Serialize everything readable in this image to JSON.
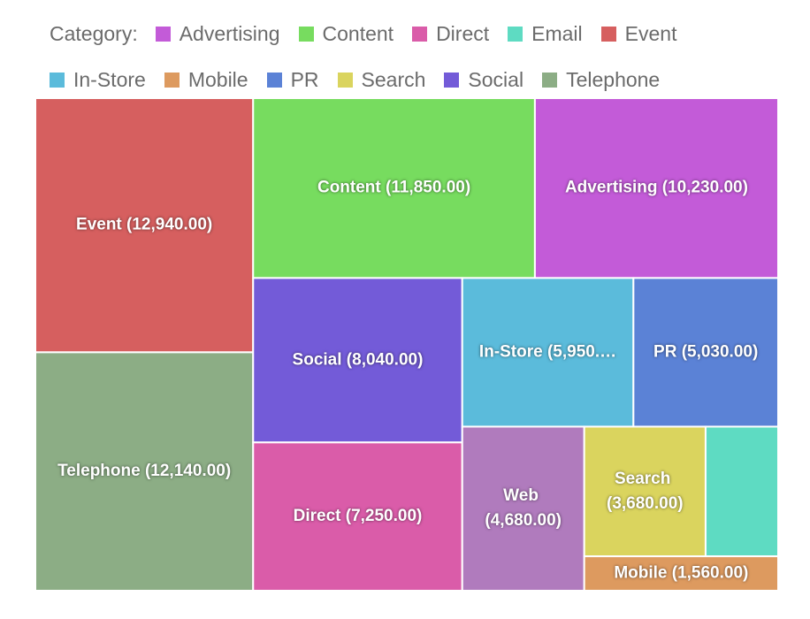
{
  "chart_data": {
    "type": "treemap",
    "legend_title": "Category:",
    "categories": [
      "Advertising",
      "Content",
      "Direct",
      "Email",
      "Event",
      "In-Store",
      "Mobile",
      "PR",
      "Search",
      "Social",
      "Telephone",
      "Web"
    ],
    "values": [
      10230,
      11850,
      7250,
      2200,
      12940,
      5950,
      1560,
      5030,
      3680,
      8040,
      12140,
      4680
    ],
    "value_labels": [
      "Advertising (10,230.00)",
      "Content (11,850.00)",
      "Direct (7,250.00)",
      null,
      "Event (12,940.00)",
      "In-Store (5,950.…",
      "Mobile (1,560.00)",
      "PR (5,030.00)",
      "Search (3,680.00)",
      "Social (8,040.00)",
      "Telephone (12,140.00)",
      "Web (4,680.00)"
    ],
    "colors": [
      "#c35bd8",
      "#77dc5f",
      "#da5ca9",
      "#5edbc2",
      "#d65f5f",
      "#5bbbdb",
      "#dd9a5f",
      "#5b82d6",
      "#dad45e",
      "#735bd8",
      "#8cad85",
      "#b07bbd"
    ]
  }
}
